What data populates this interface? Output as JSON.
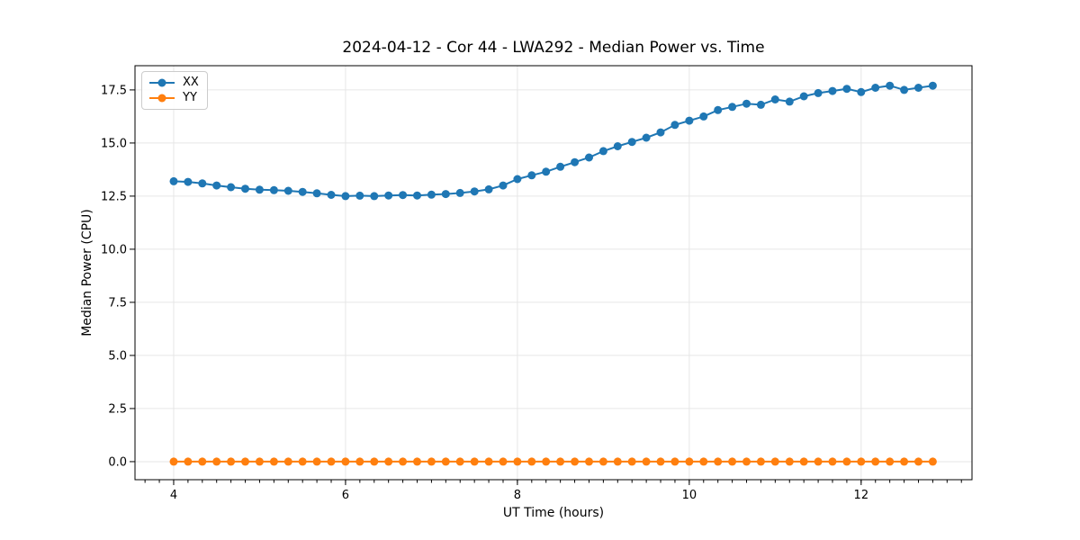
{
  "chart_data": {
    "type": "line",
    "title": "2024-04-12 - Cor 44 - LWA292 - Median Power vs. Time",
    "xlabel": "UT Time (hours)",
    "ylabel": "Median Power (CPU)",
    "xlim": [
      3.55,
      13.29
    ],
    "ylim": [
      -0.85,
      18.64
    ],
    "xticks": [
      4,
      6,
      8,
      10,
      12
    ],
    "xtick_labels": [
      "4",
      "6",
      "8",
      "10",
      "12"
    ],
    "minor_xtick_step": 0.166667,
    "yticks": [
      0,
      2.5,
      5,
      7.5,
      10,
      12.5,
      15,
      17.5
    ],
    "ytick_labels": [
      "0.0",
      "2.5",
      "5.0",
      "7.5",
      "10.0",
      "12.5",
      "15.0",
      "17.5"
    ],
    "grid": true,
    "grid_color": "#e6e6e6",
    "spine_color": "#000000",
    "legend": {
      "position": "upper-left",
      "entries": [
        {
          "label": "XX",
          "color": "#1f77b4"
        },
        {
          "label": "YY",
          "color": "#ff7f0e"
        }
      ]
    },
    "x": [
      4,
      4.1667,
      4.3333,
      4.5,
      4.6667,
      4.8333,
      5,
      5.1667,
      5.3333,
      5.5,
      5.6667,
      5.8333,
      6,
      6.1667,
      6.3333,
      6.5,
      6.6667,
      6.8333,
      7,
      7.1667,
      7.3333,
      7.5,
      7.6667,
      7.8333,
      8,
      8.1667,
      8.3333,
      8.5,
      8.6667,
      8.8333,
      9,
      9.1667,
      9.3333,
      9.5,
      9.6667,
      9.8333,
      10,
      10.1667,
      10.3333,
      10.5,
      10.6667,
      10.8333,
      11,
      11.1667,
      11.3333,
      11.5,
      11.6667,
      11.8333,
      12,
      12.1667,
      12.3333,
      12.5,
      12.6667,
      12.8333
    ],
    "series": [
      {
        "name": "XX",
        "color": "#1f77b4",
        "values": [
          13.2,
          13.17,
          13.1,
          13.0,
          12.92,
          12.85,
          12.8,
          12.78,
          12.75,
          12.7,
          12.63,
          12.56,
          12.5,
          12.52,
          12.5,
          12.53,
          12.55,
          12.53,
          12.57,
          12.6,
          12.65,
          12.72,
          12.82,
          13.0,
          13.3,
          13.48,
          13.65,
          13.88,
          14.1,
          14.32,
          14.62,
          14.85,
          15.05,
          15.25,
          15.5,
          15.85,
          16.05,
          16.25,
          16.55,
          16.7,
          16.85,
          16.8,
          17.05,
          16.95,
          17.2,
          17.35,
          17.45,
          17.55,
          17.4,
          17.6,
          17.7,
          17.5,
          17.6,
          17.7
        ]
      },
      {
        "name": "YY",
        "color": "#ff7f0e",
        "values": [
          0,
          0,
          0,
          0,
          0,
          0,
          0,
          0,
          0,
          0,
          0,
          0,
          0,
          0,
          0,
          0,
          0,
          0,
          0,
          0,
          0,
          0,
          0,
          0,
          0,
          0,
          0,
          0,
          0,
          0,
          0,
          0,
          0,
          0,
          0,
          0,
          0,
          0,
          0,
          0,
          0,
          0,
          0,
          0,
          0,
          0,
          0,
          0,
          0,
          0,
          0,
          0,
          0,
          0
        ]
      }
    ]
  }
}
